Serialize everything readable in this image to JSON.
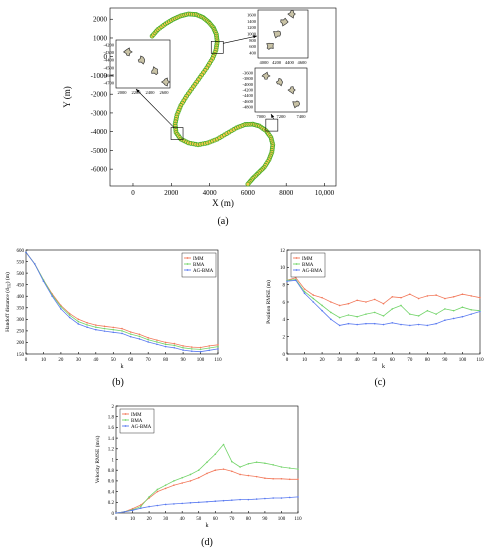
{
  "panels": [
    {
      "label": "(a)"
    },
    {
      "label": "(b)"
    },
    {
      "label": "(c)"
    },
    {
      "label": "(d)"
    }
  ],
  "chart_data": [
    {
      "type": "scatter",
      "panel": "(a)",
      "xlabel": "X (m)",
      "ylabel": "Y (m)",
      "xticks": [
        "0",
        "2000",
        "4000",
        "6000",
        "8000",
        "10,000"
      ],
      "yticks": [
        "2000",
        "1000",
        "0",
        "-1000",
        "-2000",
        "-3000",
        "-4000",
        "-5000",
        "-6000"
      ],
      "xlim": [
        -1200,
        10600
      ],
      "ylim": [
        -6900,
        2600
      ],
      "grid": false,
      "marker_colors": [
        "#f7c84c",
        "#3fae2a"
      ],
      "trajectory": {
        "x": [
          1000,
          1300,
          1700,
          2100,
          2500,
          2900,
          3300,
          3650,
          3950,
          4200,
          4350,
          4400,
          4330,
          4150,
          3850,
          3500,
          3150,
          2800,
          2500,
          2300,
          2200,
          2250,
          2500,
          2900,
          3400,
          3900,
          4400,
          4900,
          5400,
          5850,
          6250,
          6600,
          6950,
          7200,
          7300,
          7250,
          7100,
          6850,
          6550,
          6250,
          6000
        ],
        "y": [
          1100,
          1450,
          1750,
          2000,
          2180,
          2280,
          2250,
          2100,
          1850,
          1550,
          1200,
          800,
          350,
          -100,
          -600,
          -1100,
          -1600,
          -2100,
          -2600,
          -3100,
          -3600,
          -4050,
          -4400,
          -4600,
          -4700,
          -4600,
          -4400,
          -4100,
          -3800,
          -3620,
          -3600,
          -3700,
          -3950,
          -4300,
          -4700,
          -5100,
          -5500,
          -5900,
          -6200,
          -6500,
          -6800
        ]
      },
      "insets": [
        {
          "name": "inset-top-right",
          "xticks": [
            "4000",
            "4200",
            "4400",
            "4600"
          ],
          "yticks": [
            "1600",
            "1400",
            "1200"
          ],
          "yticks_visible": [
            "1600",
            "1400",
            "1200",
            "1000",
            "800",
            "600",
            "400"
          ]
        },
        {
          "name": "inset-left",
          "xticks": [
            "2000",
            "2200",
            "2400",
            "2600"
          ],
          "yticks": [
            "-4200",
            "-4300",
            "-4400",
            "-4500",
            "-4600",
            "-4700"
          ]
        },
        {
          "name": "inset-bottom-right",
          "xticks": [
            "7000",
            "7200",
            "7400"
          ],
          "yticks": [
            "-3600",
            "-3800",
            "-4000",
            "-4200",
            "-4400",
            "-4600",
            "-4800"
          ]
        }
      ]
    },
    {
      "type": "line",
      "panel": "(b)",
      "xlabel": "k",
      "ylabel": "Handoff distance (d",
      "ylabel_sub": "TE",
      "ylabel_unit": ") (m)",
      "xlim": [
        0,
        110
      ],
      "ylim": [
        150,
        600
      ],
      "xticks": [
        "0",
        "10",
        "20",
        "30",
        "40",
        "50",
        "60",
        "70",
        "80",
        "90",
        "100",
        "110"
      ],
      "yticks": [
        "150",
        "200",
        "250",
        "300",
        "350",
        "400",
        "450",
        "500",
        "550",
        "600"
      ],
      "legend_position": "top-right",
      "series": [
        {
          "name": "IMM",
          "color": "#f2785a",
          "x": [
            0,
            5,
            10,
            15,
            20,
            25,
            30,
            35,
            40,
            45,
            50,
            55,
            60,
            65,
            70,
            75,
            80,
            85,
            90,
            95,
            100,
            105,
            110
          ],
          "values": [
            590,
            540,
            470,
            410,
            360,
            325,
            300,
            285,
            275,
            270,
            265,
            260,
            245,
            235,
            220,
            210,
            200,
            195,
            185,
            180,
            178,
            185,
            190
          ]
        },
        {
          "name": "BMA",
          "color": "#73d46a",
          "x": [
            0,
            5,
            10,
            15,
            20,
            25,
            30,
            35,
            40,
            45,
            50,
            55,
            60,
            65,
            70,
            75,
            80,
            85,
            90,
            95,
            100,
            105,
            110
          ],
          "values": [
            590,
            540,
            470,
            405,
            355,
            318,
            290,
            276,
            266,
            260,
            255,
            250,
            236,
            226,
            212,
            202,
            192,
            187,
            177,
            172,
            170,
            176,
            182
          ]
        },
        {
          "name": "AG-BMA",
          "color": "#5a7af0",
          "x": [
            0,
            5,
            10,
            15,
            20,
            25,
            30,
            35,
            40,
            45,
            50,
            55,
            60,
            65,
            70,
            75,
            80,
            85,
            90,
            95,
            100,
            105,
            110
          ],
          "values": [
            590,
            540,
            465,
            400,
            345,
            308,
            280,
            266,
            255,
            249,
            244,
            239,
            225,
            215,
            202,
            192,
            182,
            177,
            167,
            162,
            160,
            166,
            172
          ]
        }
      ]
    },
    {
      "type": "line",
      "panel": "(c)",
      "xlabel": "k",
      "ylabel": "Position RMSE (m)",
      "xlim": [
        0,
        110
      ],
      "ylim": [
        0,
        12
      ],
      "xticks": [
        "0",
        "10",
        "20",
        "30",
        "40",
        "50",
        "60",
        "70",
        "80",
        "90",
        "100",
        "110"
      ],
      "yticks": [
        "0",
        "2",
        "4",
        "6",
        "8",
        "10",
        "12"
      ],
      "legend_position": "top-left",
      "series": [
        {
          "name": "IMM",
          "color": "#f2785a",
          "x": [
            0,
            5,
            10,
            15,
            20,
            25,
            30,
            35,
            40,
            45,
            50,
            55,
            60,
            65,
            70,
            75,
            80,
            85,
            90,
            95,
            100,
            105,
            110
          ],
          "values": [
            8.5,
            8.8,
            7.5,
            6.8,
            6.5,
            6.0,
            5.6,
            5.8,
            6.2,
            6.0,
            6.3,
            5.8,
            6.6,
            6.5,
            6.9,
            6.4,
            6.7,
            6.8,
            6.4,
            6.6,
            6.9,
            6.7,
            6.5
          ]
        },
        {
          "name": "BMA",
          "color": "#73d46a",
          "x": [
            0,
            5,
            10,
            15,
            20,
            25,
            30,
            35,
            40,
            45,
            50,
            55,
            60,
            65,
            70,
            75,
            80,
            85,
            90,
            95,
            100,
            105,
            110
          ],
          "values": [
            8.5,
            8.6,
            7.2,
            6.4,
            5.6,
            4.8,
            4.2,
            4.5,
            4.3,
            4.6,
            4.8,
            4.4,
            5.2,
            5.6,
            4.6,
            4.4,
            5.0,
            4.6,
            5.2,
            5.0,
            5.4,
            5.1,
            5.0
          ]
        },
        {
          "name": "AG-BMA",
          "color": "#5a7af0",
          "x": [
            0,
            5,
            10,
            15,
            20,
            25,
            30,
            35,
            40,
            45,
            50,
            55,
            60,
            65,
            70,
            75,
            80,
            85,
            90,
            95,
            100,
            105,
            110
          ],
          "values": [
            8.4,
            8.5,
            7.0,
            6.0,
            5.0,
            4.0,
            3.3,
            3.5,
            3.4,
            3.5,
            3.5,
            3.4,
            3.6,
            3.4,
            3.3,
            3.4,
            3.3,
            3.5,
            3.9,
            4.1,
            4.3,
            4.6,
            4.9
          ]
        }
      ]
    },
    {
      "type": "line",
      "panel": "(d)",
      "xlabel": "k",
      "ylabel": "Velocity RMSE (m/s)",
      "xlim": [
        0,
        110
      ],
      "ylim": [
        0,
        2
      ],
      "xticks": [
        "0",
        "10",
        "20",
        "30",
        "40",
        "50",
        "60",
        "70",
        "80",
        "90",
        "100",
        "110"
      ],
      "yticks": [
        "0",
        "0.2",
        "0.4",
        "0.6",
        "0.8",
        "1",
        "1.2",
        "1.4",
        "1.6",
        "1.8",
        "2"
      ],
      "legend_position": "top-left",
      "series": [
        {
          "name": "IMM",
          "color": "#f2785a",
          "x": [
            0,
            5,
            10,
            15,
            20,
            25,
            30,
            35,
            40,
            45,
            50,
            55,
            60,
            65,
            70,
            75,
            80,
            85,
            90,
            95,
            100,
            105,
            110
          ],
          "values": [
            0.0,
            0.02,
            0.08,
            0.15,
            0.28,
            0.4,
            0.46,
            0.52,
            0.56,
            0.6,
            0.66,
            0.74,
            0.8,
            0.82,
            0.78,
            0.72,
            0.7,
            0.68,
            0.65,
            0.64,
            0.64,
            0.63,
            0.63
          ]
        },
        {
          "name": "BMA",
          "color": "#73d46a",
          "x": [
            0,
            5,
            10,
            15,
            20,
            25,
            30,
            35,
            40,
            45,
            50,
            55,
            60,
            65,
            70,
            75,
            80,
            85,
            90,
            95,
            100,
            105,
            110
          ],
          "values": [
            0.0,
            0.02,
            0.06,
            0.12,
            0.3,
            0.44,
            0.52,
            0.6,
            0.66,
            0.72,
            0.8,
            0.95,
            1.1,
            1.28,
            0.96,
            0.86,
            0.92,
            0.95,
            0.93,
            0.9,
            0.86,
            0.84,
            0.82
          ]
        },
        {
          "name": "AG-BMA",
          "color": "#5a7af0",
          "x": [
            0,
            5,
            10,
            15,
            20,
            25,
            30,
            35,
            40,
            45,
            50,
            55,
            60,
            65,
            70,
            75,
            80,
            85,
            90,
            95,
            100,
            105,
            110
          ],
          "values": [
            0.0,
            0.02,
            0.05,
            0.09,
            0.12,
            0.14,
            0.16,
            0.17,
            0.18,
            0.19,
            0.2,
            0.21,
            0.22,
            0.23,
            0.24,
            0.25,
            0.25,
            0.26,
            0.27,
            0.28,
            0.28,
            0.29,
            0.3
          ]
        }
      ]
    }
  ]
}
